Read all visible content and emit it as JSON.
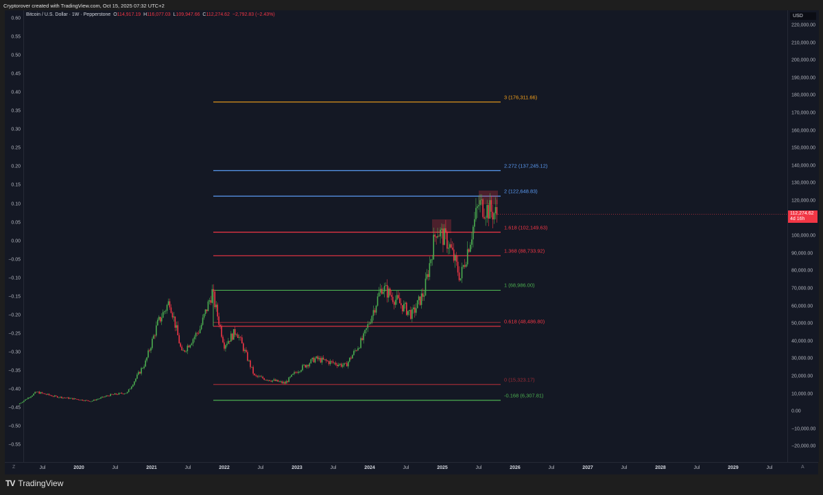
{
  "credit": "Cryptorover created with TradingView.com, Oct 15, 2025 07:32 UTC+2",
  "legend": {
    "symbol": "Bitcoin / U.S. Dollar · 1W · Pepperstone",
    "open_label": "O",
    "open": "114,917.19",
    "high_label": "H",
    "high": "116,077.03",
    "low_label": "L",
    "low": "109,947.66",
    "close_label": "C",
    "close": "112,274.62",
    "change": "−2,792.83 (−2.43%)"
  },
  "currency": "USD",
  "price_tag": {
    "price": "112,274.62",
    "countdown": "4d 16h"
  },
  "footer": {
    "brand": "TradingView",
    "logo": "TV"
  },
  "corner_left": "Z",
  "corner_right": "A",
  "colors": {
    "background": "#141824",
    "up": "#4caf50",
    "down": "#f23645",
    "orange": "#f7a21b",
    "blue": "#5b9cf6",
    "red": "#f23645",
    "green": "#4caf50"
  },
  "chart_data": {
    "type": "candlestick",
    "title": "Bitcoin / U.S. Dollar · 1W · Pepperstone",
    "xlabel": "",
    "ylabel": "USD",
    "x_ticks": [
      "Jul",
      "2020",
      "Jul",
      "2021",
      "Jul",
      "2022",
      "Jul",
      "2023",
      "Jul",
      "2024",
      "Jul",
      "2025",
      "Jul",
      "2026",
      "Jul",
      "2027",
      "Jul",
      "2028",
      "Jul",
      "2029",
      "Jul"
    ],
    "y_ticks_right": [
      "220,000.00",
      "210,000.00",
      "200,000.00",
      "190,000.00",
      "180,000.00",
      "170,000.00",
      "160,000.00",
      "150,000.00",
      "140,000.00",
      "130,000.00",
      "120,000.00",
      "110,000.00",
      "100,000.00",
      "90,000.00",
      "80,000.00",
      "70,000.00",
      "60,000.00",
      "50,000.00",
      "40,000.00",
      "30,000.00",
      "20,000.00",
      "10,000.00",
      "0.00",
      "−10,000.00",
      "−20,000.00"
    ],
    "y_ticks_left": [
      "0.60",
      "0.55",
      "0.50",
      "0.45",
      "0.40",
      "0.35",
      "0.30",
      "0.25",
      "0.20",
      "0.15",
      "0.10",
      "0.05",
      "0.00",
      "−0.05",
      "−0.10",
      "−0.15",
      "−0.20",
      "−0.25",
      "−0.30",
      "−0.35",
      "−0.40",
      "−0.45",
      "−0.50",
      "−0.55"
    ],
    "ylim": [
      -25000,
      225000
    ],
    "fib_levels": [
      {
        "level": "3",
        "price": 176311.66,
        "label": "3 (176,311.66)",
        "color": "#f7a21b"
      },
      {
        "level": "2.272",
        "price": 137245.12,
        "label": "2.272 (137,245.12)",
        "color": "#5b9cf6"
      },
      {
        "level": "2",
        "price": 122648.83,
        "label": "2 (122,648.83)",
        "color": "#5b9cf6"
      },
      {
        "level": "1.618",
        "price": 102149.63,
        "label": "1.618 (102,149.63)",
        "color": "#f23645"
      },
      {
        "level": "1.368",
        "price": 88733.92,
        "label": "1.368 (88,733.92)",
        "color": "#f23645"
      },
      {
        "level": "1",
        "price": 68986.0,
        "label": "1 (68,986.00)",
        "color": "#4caf50"
      },
      {
        "level": "0.618",
        "price": 48486.8,
        "label": "0.618 (48,486.80)",
        "color": "#f23645"
      },
      {
        "level": "0",
        "price": 15323.17,
        "label": "0 (15,323.17)",
        "color": "#9c2b36"
      },
      {
        "level": "-0.168",
        "price": 6307.81,
        "label": "-0.168 (6,307.81)",
        "color": "#4caf50"
      }
    ],
    "price_path": [
      {
        "date": "2019-03",
        "price": 4000
      },
      {
        "date": "2019-06",
        "price": 11000
      },
      {
        "date": "2019-09",
        "price": 8500
      },
      {
        "date": "2019-12",
        "price": 7200
      },
      {
        "date": "2020-03",
        "price": 5800
      },
      {
        "date": "2020-06",
        "price": 9200
      },
      {
        "date": "2020-09",
        "price": 10700
      },
      {
        "date": "2020-12",
        "price": 28000
      },
      {
        "date": "2021-02",
        "price": 50000
      },
      {
        "date": "2021-04",
        "price": 63000
      },
      {
        "date": "2021-06",
        "price": 33000
      },
      {
        "date": "2021-09",
        "price": 47000
      },
      {
        "date": "2021-11",
        "price": 68000
      },
      {
        "date": "2022-01",
        "price": 38000
      },
      {
        "date": "2022-03",
        "price": 46000
      },
      {
        "date": "2022-06",
        "price": 20000
      },
      {
        "date": "2022-11",
        "price": 16000
      },
      {
        "date": "2023-01",
        "price": 23000
      },
      {
        "date": "2023-04",
        "price": 30000
      },
      {
        "date": "2023-09",
        "price": 26000
      },
      {
        "date": "2023-12",
        "price": 42000
      },
      {
        "date": "2024-03",
        "price": 71000
      },
      {
        "date": "2024-08",
        "price": 55000
      },
      {
        "date": "2024-10",
        "price": 68000
      },
      {
        "date": "2024-12",
        "price": 104000
      },
      {
        "date": "2025-02",
        "price": 96000
      },
      {
        "date": "2025-04",
        "price": 76000
      },
      {
        "date": "2025-07",
        "price": 118000
      },
      {
        "date": "2025-10",
        "price": 112274.62
      }
    ],
    "legend_position": "top-left",
    "grid": false
  }
}
